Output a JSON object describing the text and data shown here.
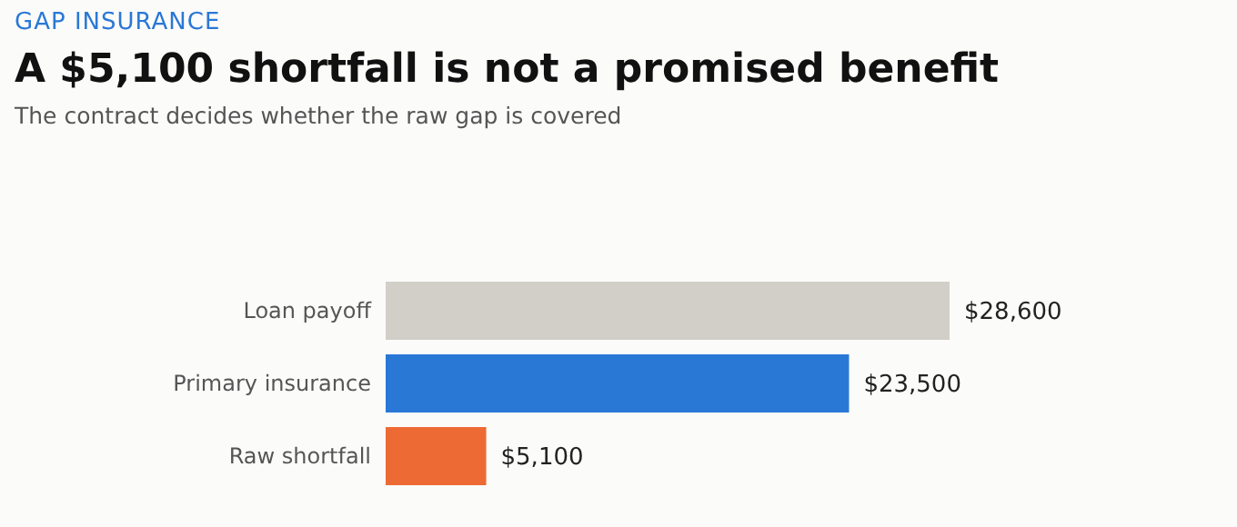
{
  "chart_data": {
    "type": "bar",
    "orientation": "horizontal",
    "title": "A $5,100 shortfall is not a promised benefit",
    "subtitle": "The contract decides whether the raw gap is covered",
    "annotations": [
      "GAP INSURANCE"
    ],
    "categories": [
      "Loan payoff",
      "Primary insurance",
      "Raw shortfall"
    ],
    "values": [
      28600,
      23500,
      5100
    ],
    "colors": [
      "#d1cfc7",
      "#2a78d6",
      "#ee6a35"
    ],
    "value_labels": [
      "$28,600",
      "$23,500",
      "$5,100"
    ],
    "xlim": [
      0,
      28600
    ],
    "tick_labels": "y"
  }
}
